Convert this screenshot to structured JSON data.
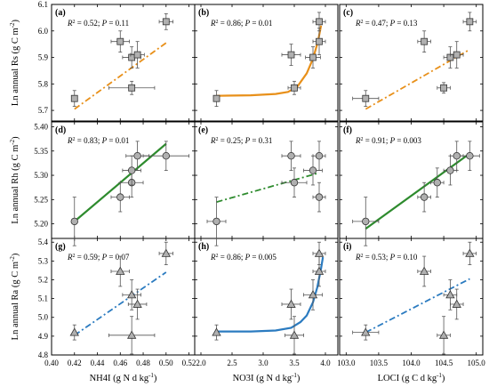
{
  "chart_data": {
    "type": "scatter",
    "layout": "3x3 panel grid",
    "x_axes": [
      {
        "label": "NH4I (g N d kg",
        "label_sup": "-1",
        "label_end": ")",
        "range": [
          0.4,
          0.525
        ],
        "ticks": [
          "0.40",
          "0.42",
          "0.44",
          "0.46",
          "0.48",
          "0.50",
          "0.52"
        ],
        "tick_values": [
          0.4,
          0.42,
          0.44,
          0.46,
          0.48,
          0.5,
          0.52
        ]
      },
      {
        "label": "NO3I (g N d kg",
        "label_sup": "-1",
        "label_end": ")",
        "range": [
          1.9,
          4.2
        ],
        "ticks": [
          "2.0",
          "2.5",
          "3.0",
          "3.5",
          "4.0"
        ],
        "tick_values": [
          2.0,
          2.5,
          3.0,
          3.5,
          4.0
        ]
      },
      {
        "label": "LOCI (g C d kg",
        "label_sup": "-1",
        "label_end": ")",
        "range": [
          102.9,
          105.1
        ],
        "ticks": [
          "103.0",
          "103.5",
          "104.0",
          "104.5",
          "105.0"
        ],
        "tick_values": [
          103.0,
          103.5,
          104.0,
          104.5,
          105.0
        ]
      }
    ],
    "y_axes": [
      {
        "label": "Ln annual Rs (g C m",
        "label_sup": "-2",
        "label_end": ")",
        "range": [
          5.66,
          6.1
        ],
        "ticks": [
          "5.7",
          "5.8",
          "5.9",
          "6.0",
          "6.1"
        ],
        "tick_values": [
          5.7,
          5.8,
          5.9,
          6.0,
          6.1
        ],
        "marker": "square",
        "fill": "#b0b0b0"
      },
      {
        "label": "Ln annual Rh (g C m",
        "label_sup": "-2",
        "label_end": ")",
        "range": [
          5.17,
          5.41
        ],
        "ticks": [
          "5.20",
          "5.25",
          "5.30",
          "5.35",
          "5.40"
        ],
        "tick_values": [
          5.2,
          5.25,
          5.3,
          5.35,
          5.4
        ],
        "marker": "circle",
        "fill": "#b0b0b0"
      },
      {
        "label": "Ln annual Ra (g C m",
        "label_sup": "-2",
        "label_end": ")",
        "range": [
          4.8,
          5.42
        ],
        "ticks": [
          "4.8",
          "4.9",
          "5.0",
          "5.1",
          "5.2",
          "5.3",
          "5.4"
        ],
        "tick_values": [
          4.8,
          4.9,
          5.0,
          5.1,
          5.2,
          5.3,
          5.4
        ],
        "marker": "triangle",
        "fill": "#b0b0b0"
      }
    ],
    "panels": [
      {
        "id": "(a)",
        "row": 0,
        "col": 0,
        "stat": "R² = 0.52; P = 0.11",
        "r2": "0.52",
        "p": "0.11",
        "fit": "linear",
        "fit_style": "dashdot",
        "fit_color": "#e8901a",
        "points": [
          {
            "x": 0.42,
            "y": 5.745,
            "xe": 0,
            "ye": 0.03
          },
          {
            "x": 0.46,
            "y": 5.96,
            "xe": 0.008,
            "ye": 0.04
          },
          {
            "x": 0.47,
            "y": 5.9,
            "xe": 0.008,
            "ye": 0.04
          },
          {
            "x": 0.475,
            "y": 5.91,
            "xe": 0.006,
            "ye": 0.05
          },
          {
            "x": 0.47,
            "y": 5.785,
            "xe": 0.02,
            "ye": 0.025
          },
          {
            "x": 0.5,
            "y": 6.035,
            "xe": 0.006,
            "ye": 0.03
          }
        ],
        "fit_points": [
          [
            0.42,
            5.705
          ],
          [
            0.5,
            5.955
          ]
        ]
      },
      {
        "id": "(b)",
        "row": 0,
        "col": 1,
        "stat": "R² = 0.86; P = 0.01",
        "r2": "0.86",
        "p": "0.01",
        "fit": "exponential",
        "fit_style": "solid",
        "fit_color": "#e8901a",
        "points": [
          {
            "x": 2.25,
            "y": 5.745,
            "xe": 0,
            "ye": 0.03
          },
          {
            "x": 3.45,
            "y": 5.91,
            "xe": 0.15,
            "ye": 0.04
          },
          {
            "x": 3.5,
            "y": 5.785,
            "xe": 0.1,
            "ye": 0.025
          },
          {
            "x": 3.8,
            "y": 5.9,
            "xe": 0.12,
            "ye": 0.04
          },
          {
            "x": 3.9,
            "y": 5.96,
            "xe": 0.1,
            "ye": 0.05
          },
          {
            "x": 3.9,
            "y": 6.035,
            "xe": 0.1,
            "ye": 0.035
          }
        ],
        "fit_points": [
          [
            2.25,
            5.755
          ],
          [
            2.8,
            5.757
          ],
          [
            3.2,
            5.762
          ],
          [
            3.4,
            5.77
          ],
          [
            3.55,
            5.79
          ],
          [
            3.7,
            5.84
          ],
          [
            3.8,
            5.895
          ],
          [
            3.88,
            5.96
          ],
          [
            3.93,
            6.02
          ]
        ]
      },
      {
        "id": "(c)",
        "row": 0,
        "col": 2,
        "stat": "R² = 0.47; P = 0.13",
        "r2": "0.47",
        "p": "0.13",
        "fit": "linear",
        "fit_style": "dashdot",
        "fit_color": "#e8901a",
        "points": [
          {
            "x": 103.3,
            "y": 5.745,
            "xe": 0.2,
            "ye": 0.03
          },
          {
            "x": 104.2,
            "y": 5.96,
            "xe": 0.1,
            "ye": 0.04
          },
          {
            "x": 104.6,
            "y": 5.9,
            "xe": 0.1,
            "ye": 0.04
          },
          {
            "x": 104.7,
            "y": 5.91,
            "xe": 0.1,
            "ye": 0.05
          },
          {
            "x": 104.5,
            "y": 5.785,
            "xe": 0.1,
            "ye": 0.02
          },
          {
            "x": 104.9,
            "y": 6.035,
            "xe": 0.1,
            "ye": 0.035
          }
        ],
        "fit_points": [
          [
            103.3,
            5.705
          ],
          [
            104.9,
            5.93
          ]
        ]
      },
      {
        "id": "(d)",
        "row": 1,
        "col": 0,
        "stat": "R² = 0.83; P = 0.01",
        "r2": "0.83",
        "p": "0.01",
        "fit": "linear",
        "fit_style": "solid",
        "fit_color": "#2e8b2e",
        "points": [
          {
            "x": 0.42,
            "y": 5.205,
            "xe": 0,
            "ye": 0.05
          },
          {
            "x": 0.46,
            "y": 5.255,
            "xe": 0.008,
            "ye": 0.03
          },
          {
            "x": 0.47,
            "y": 5.285,
            "xe": 0.01,
            "ye": 0.03
          },
          {
            "x": 0.47,
            "y": 5.31,
            "xe": 0.008,
            "ye": 0.03
          },
          {
            "x": 0.475,
            "y": 5.34,
            "xe": 0.01,
            "ye": 0.03
          },
          {
            "x": 0.5,
            "y": 5.34,
            "xe": 0.02,
            "ye": 0.03
          }
        ],
        "fit_points": [
          [
            0.42,
            5.205
          ],
          [
            0.5,
            5.365
          ]
        ]
      },
      {
        "id": "(e)",
        "row": 1,
        "col": 1,
        "stat": "R² = 0.25; P = 0.31",
        "r2": "0.25",
        "p": "0.31",
        "fit": "linear",
        "fit_style": "dashdot",
        "fit_color": "#2e8b2e",
        "points": [
          {
            "x": 2.25,
            "y": 5.205,
            "xe": 0.15,
            "ye": 0.05
          },
          {
            "x": 3.45,
            "y": 5.34,
            "xe": 0.15,
            "ye": 0.03
          },
          {
            "x": 3.5,
            "y": 5.285,
            "xe": 0.2,
            "ye": 0.03
          },
          {
            "x": 3.8,
            "y": 5.31,
            "xe": 0.15,
            "ye": 0.03
          },
          {
            "x": 3.9,
            "y": 5.34,
            "xe": 0.1,
            "ye": 0.03
          },
          {
            "x": 3.9,
            "y": 5.255,
            "xe": 0.1,
            "ye": 0.03
          }
        ],
        "fit_points": [
          [
            2.25,
            5.245
          ],
          [
            3.9,
            5.305
          ]
        ]
      },
      {
        "id": "(f)",
        "row": 1,
        "col": 2,
        "stat": "R² = 0.91; P = 0.003",
        "r2": "0.91",
        "p": "0.003",
        "fit": "linear",
        "fit_style": "solid",
        "fit_color": "#2e8b2e",
        "points": [
          {
            "x": 103.3,
            "y": 5.205,
            "xe": 0.2,
            "ye": 0.05
          },
          {
            "x": 104.2,
            "y": 5.255,
            "xe": 0.1,
            "ye": 0.03
          },
          {
            "x": 104.4,
            "y": 5.285,
            "xe": 0.1,
            "ye": 0.03
          },
          {
            "x": 104.6,
            "y": 5.31,
            "xe": 0.1,
            "ye": 0.03
          },
          {
            "x": 104.7,
            "y": 5.34,
            "xe": 0.1,
            "ye": 0.03
          },
          {
            "x": 104.9,
            "y": 5.34,
            "xe": 0.15,
            "ye": 0.03
          }
        ],
        "fit_points": [
          [
            103.3,
            5.19
          ],
          [
            104.9,
            5.345
          ]
        ]
      },
      {
        "id": "(g)",
        "row": 2,
        "col": 0,
        "stat": "R² = 0.59; P = 0.07",
        "r2": "0.59",
        "p": "0.07",
        "fit": "linear",
        "fit_style": "dashdot",
        "fit_color": "#2b7bc0",
        "points": [
          {
            "x": 0.42,
            "y": 4.92,
            "xe": 0,
            "ye": 0.04
          },
          {
            "x": 0.46,
            "y": 5.245,
            "xe": 0.008,
            "ye": 0.08
          },
          {
            "x": 0.47,
            "y": 5.12,
            "xe": 0.008,
            "ye": 0.08
          },
          {
            "x": 0.475,
            "y": 5.07,
            "xe": 0.008,
            "ye": 0.08
          },
          {
            "x": 0.47,
            "y": 4.905,
            "xe": 0.02,
            "ye": 0.1
          },
          {
            "x": 0.5,
            "y": 5.34,
            "xe": 0.006,
            "ye": 0.06
          }
        ],
        "fit_points": [
          [
            0.42,
            4.905
          ],
          [
            0.5,
            5.24
          ]
        ]
      },
      {
        "id": "(h)",
        "row": 2,
        "col": 1,
        "stat": "R² = 0.86; P = 0.005",
        "r2": "0.86",
        "p": "0.005",
        "fit": "exponential",
        "fit_style": "solid",
        "fit_color": "#2b7bc0",
        "points": [
          {
            "x": 2.25,
            "y": 4.92,
            "xe": 0,
            "ye": 0.04
          },
          {
            "x": 3.45,
            "y": 5.07,
            "xe": 0.15,
            "ye": 0.08
          },
          {
            "x": 3.5,
            "y": 4.905,
            "xe": 0.15,
            "ye": 0.1
          },
          {
            "x": 3.8,
            "y": 5.12,
            "xe": 0.15,
            "ye": 0.08
          },
          {
            "x": 3.9,
            "y": 5.245,
            "xe": 0.1,
            "ye": 0.08
          },
          {
            "x": 3.9,
            "y": 5.34,
            "xe": 0.1,
            "ye": 0.06
          }
        ],
        "fit_points": [
          [
            2.25,
            4.925
          ],
          [
            2.8,
            4.925
          ],
          [
            3.2,
            4.93
          ],
          [
            3.45,
            4.945
          ],
          [
            3.6,
            4.975
          ],
          [
            3.7,
            5.01
          ],
          [
            3.8,
            5.08
          ],
          [
            3.87,
            5.16
          ],
          [
            3.93,
            5.26
          ],
          [
            3.96,
            5.32
          ]
        ]
      },
      {
        "id": "(i)",
        "row": 2,
        "col": 2,
        "stat": "R² = 0.53; P = 0.10",
        "r2": "0.53",
        "p": "0.10",
        "fit": "linear",
        "fit_style": "dashdot",
        "fit_color": "#2b7bc0",
        "points": [
          {
            "x": 103.3,
            "y": 4.92,
            "xe": 0.2,
            "ye": 0.04
          },
          {
            "x": 104.2,
            "y": 5.245,
            "xe": 0.1,
            "ye": 0.08
          },
          {
            "x": 104.6,
            "y": 5.12,
            "xe": 0.1,
            "ye": 0.08
          },
          {
            "x": 104.7,
            "y": 5.07,
            "xe": 0.1,
            "ye": 0.08
          },
          {
            "x": 104.5,
            "y": 4.905,
            "xe": 0.1,
            "ye": 0.1
          },
          {
            "x": 104.9,
            "y": 5.34,
            "xe": 0.1,
            "ye": 0.06
          }
        ],
        "fit_points": [
          [
            103.3,
            4.92
          ],
          [
            104.9,
            5.205
          ]
        ]
      }
    ]
  }
}
